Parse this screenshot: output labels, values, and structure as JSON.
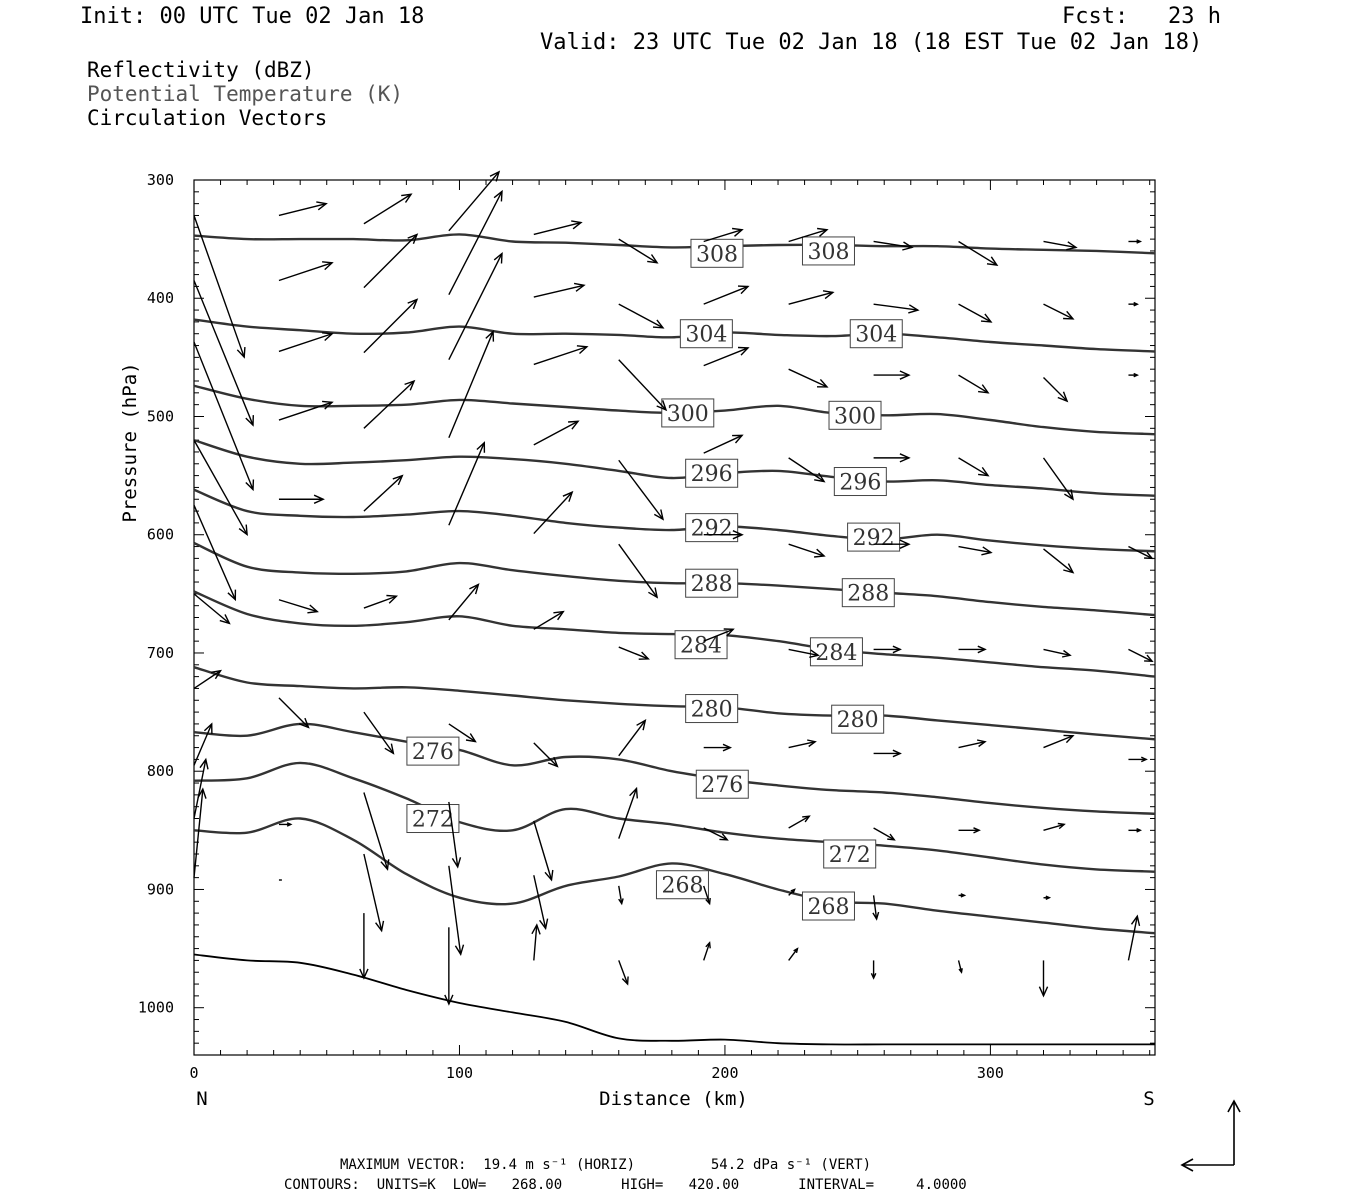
{
  "header": {
    "init": "Init: 00 UTC Tue 02 Jan 18",
    "fcst": "Fcst:   23 h",
    "valid": "Valid: 23 UTC Tue 02 Jan 18 (18 EST Tue 02 Jan 18)"
  },
  "fields": {
    "reflectivity": "Reflectivity (dBZ)",
    "theta": "Potential Temperature (K)",
    "vectors": "Circulation Vectors"
  },
  "footer": {
    "max_vector": "MAXIMUM VECTOR:  19.4 m s⁻¹ (HORIZ)         54.2 dPa s⁻¹ (VERT)",
    "contours": "CONTOURS:  UNITS=K  LOW=   268.00       HIGH=   420.00       INTERVAL=     4.0000"
  },
  "chart_data": {
    "type": "line",
    "xlabel": "Distance (km)",
    "ylabel": "Pressure (hPa)",
    "xlim": [
      0,
      362
    ],
    "ylim": [
      300,
      1040
    ],
    "y_inverted": true,
    "x_ticks": [
      "0",
      "100",
      "200",
      "300"
    ],
    "y_ticks": [
      "300",
      "400",
      "500",
      "600",
      "700",
      "800",
      "900",
      "1000"
    ],
    "left_end_label": "N",
    "right_end_label": "S",
    "contour_x": [
      0,
      20,
      40,
      60,
      80,
      100,
      120,
      140,
      160,
      180,
      200,
      220,
      240,
      260,
      280,
      300,
      320,
      340,
      362
    ],
    "series": [
      {
        "name": "308",
        "values": [
          347,
          350,
          350,
          350,
          351,
          346,
          352,
          353,
          355,
          357,
          356,
          355,
          355,
          356,
          356,
          358,
          359,
          360,
          362
        ]
      },
      {
        "name": "304",
        "values": [
          418,
          424,
          427,
          430,
          429,
          424,
          430,
          430,
          431,
          433,
          429,
          431,
          432,
          430,
          433,
          437,
          440,
          443,
          445
        ]
      },
      {
        "name": "300",
        "values": [
          474,
          485,
          491,
          491,
          490,
          486,
          489,
          492,
          495,
          497,
          495,
          491,
          497,
          499,
          498,
          503,
          509,
          513,
          515
        ]
      },
      {
        "name": "296",
        "values": [
          520,
          534,
          540,
          539,
          537,
          534,
          536,
          540,
          546,
          552,
          548,
          546,
          551,
          555,
          554,
          558,
          561,
          565,
          567
        ]
      },
      {
        "name": "292",
        "values": [
          562,
          580,
          584,
          585,
          583,
          580,
          584,
          590,
          594,
          596,
          593,
          596,
          601,
          604,
          600,
          605,
          609,
          612,
          614
        ]
      },
      {
        "name": "288",
        "values": [
          607,
          627,
          632,
          633,
          631,
          624,
          630,
          635,
          639,
          641,
          641,
          643,
          646,
          649,
          652,
          657,
          661,
          664,
          668
        ]
      },
      {
        "name": "284",
        "values": [
          648,
          667,
          675,
          677,
          674,
          669,
          677,
          680,
          683,
          684,
          685,
          690,
          697,
          701,
          704,
          708,
          712,
          715,
          720
        ]
      },
      {
        "name": "280",
        "values": [
          712,
          725,
          728,
          730,
          729,
          732,
          736,
          740,
          743,
          745,
          746,
          751,
          753,
          753,
          757,
          761,
          765,
          769,
          773
        ]
      },
      {
        "name": "276",
        "values": [
          767,
          770,
          760,
          767,
          775,
          782,
          795,
          788,
          790,
          800,
          807,
          812,
          816,
          818,
          822,
          827,
          831,
          834,
          836
        ]
      },
      {
        "name": "272",
        "values": [
          808,
          806,
          793,
          806,
          823,
          843,
          850,
          832,
          840,
          845,
          852,
          857,
          860,
          863,
          867,
          873,
          879,
          883,
          885
        ]
      },
      {
        "name": "268",
        "values": [
          850,
          852,
          840,
          858,
          887,
          907,
          912,
          897,
          889,
          878,
          887,
          900,
          910,
          912,
          918,
          923,
          928,
          933,
          937
        ]
      },
      {
        "name": "",
        "values": [
          955,
          960,
          962,
          972,
          985,
          996,
          1004,
          1012,
          1026,
          1028,
          1027,
          1030,
          1031,
          1031,
          1031,
          1031,
          1031,
          1031,
          1031
        ]
      }
    ],
    "contour_labels": [
      {
        "text": "308",
        "x": 197,
        "y": 362
      },
      {
        "text": "308",
        "x": 239,
        "y": 360
      },
      {
        "text": "304",
        "x": 193,
        "y": 430
      },
      {
        "text": "304",
        "x": 257,
        "y": 430
      },
      {
        "text": "300",
        "x": 186,
        "y": 497
      },
      {
        "text": "300",
        "x": 249,
        "y": 499
      },
      {
        "text": "296",
        "x": 195,
        "y": 548
      },
      {
        "text": "296",
        "x": 251,
        "y": 555
      },
      {
        "text": "292",
        "x": 195,
        "y": 594
      },
      {
        "text": "292",
        "x": 256,
        "y": 602
      },
      {
        "text": "288",
        "x": 195,
        "y": 641
      },
      {
        "text": "288",
        "x": 254,
        "y": 649
      },
      {
        "text": "284",
        "x": 191,
        "y": 693
      },
      {
        "text": "284",
        "x": 242,
        "y": 699
      },
      {
        "text": "280",
        "x": 195,
        "y": 747
      },
      {
        "text": "280",
        "x": 250,
        "y": 756
      },
      {
        "text": "276",
        "x": 90,
        "y": 783
      },
      {
        "text": "276",
        "x": 199,
        "y": 811
      },
      {
        "text": "272",
        "x": 90,
        "y": 840
      },
      {
        "text": "272",
        "x": 247,
        "y": 870
      },
      {
        "text": "268",
        "x": 184,
        "y": 896
      },
      {
        "text": "268",
        "x": 239,
        "y": 914
      }
    ],
    "vectors": [
      {
        "x": 0,
        "y": 330,
        "u": 17,
        "v": 48
      },
      {
        "x": 32,
        "y": 330,
        "u": 16,
        "v": -4
      },
      {
        "x": 64,
        "y": 337,
        "u": 16,
        "v": -10
      },
      {
        "x": 96,
        "y": 343,
        "u": 17,
        "v": -20
      },
      {
        "x": 128,
        "y": 346,
        "u": 16,
        "v": -4
      },
      {
        "x": 160,
        "y": 350,
        "u": 13,
        "v": 8
      },
      {
        "x": 192,
        "y": 352,
        "u": 13,
        "v": -4
      },
      {
        "x": 224,
        "y": 352,
        "u": 13,
        "v": -4
      },
      {
        "x": 256,
        "y": 352,
        "u": 13,
        "v": 2
      },
      {
        "x": 288,
        "y": 352,
        "u": 13,
        "v": 8
      },
      {
        "x": 320,
        "y": 352,
        "u": 11,
        "v": 2
      },
      {
        "x": 352,
        "y": 352,
        "u": 4,
        "v": 0
      },
      {
        "x": 0,
        "y": 385,
        "u": 20,
        "v": 49
      },
      {
        "x": 32,
        "y": 385,
        "u": 18,
        "v": -6
      },
      {
        "x": 64,
        "y": 391,
        "u": 18,
        "v": -18
      },
      {
        "x": 96,
        "y": 397,
        "u": 18,
        "v": -35
      },
      {
        "x": 128,
        "y": 399,
        "u": 17,
        "v": -4
      },
      {
        "x": 160,
        "y": 405,
        "u": 15,
        "v": 8
      },
      {
        "x": 192,
        "y": 405,
        "u": 15,
        "v": -6
      },
      {
        "x": 224,
        "y": 405,
        "u": 15,
        "v": -4
      },
      {
        "x": 256,
        "y": 405,
        "u": 15,
        "v": 2
      },
      {
        "x": 288,
        "y": 405,
        "u": 11,
        "v": 6
      },
      {
        "x": 320,
        "y": 405,
        "u": 10,
        "v": 5
      },
      {
        "x": 352,
        "y": 405,
        "u": 3,
        "v": 0
      },
      {
        "x": 0,
        "y": 437,
        "u": 20,
        "v": 50
      },
      {
        "x": 32,
        "y": 445,
        "u": 18,
        "v": -6
      },
      {
        "x": 64,
        "y": 446,
        "u": 18,
        "v": -18
      },
      {
        "x": 96,
        "y": 452,
        "u": 18,
        "v": -36
      },
      {
        "x": 128,
        "y": 456,
        "u": 18,
        "v": -6
      },
      {
        "x": 160,
        "y": 452,
        "u": 16,
        "v": 17
      },
      {
        "x": 192,
        "y": 457,
        "u": 15,
        "v": -6
      },
      {
        "x": 224,
        "y": 460,
        "u": 13,
        "v": 6
      },
      {
        "x": 256,
        "y": 465,
        "u": 12,
        "v": 0
      },
      {
        "x": 288,
        "y": 465,
        "u": 10,
        "v": 6
      },
      {
        "x": 320,
        "y": 467,
        "u": 8,
        "v": 8
      },
      {
        "x": 352,
        "y": 465,
        "u": 3,
        "v": 0
      },
      {
        "x": 0,
        "y": 520,
        "u": 18,
        "v": 32
      },
      {
        "x": 32,
        "y": 503,
        "u": 18,
        "v": -6
      },
      {
        "x": 64,
        "y": 510,
        "u": 17,
        "v": -16
      },
      {
        "x": 96,
        "y": 518,
        "u": 15,
        "v": -36
      },
      {
        "x": 128,
        "y": 524,
        "u": 15,
        "v": -8
      },
      {
        "x": 160,
        "y": 537,
        "u": 15,
        "v": 20
      },
      {
        "x": 192,
        "y": 531,
        "u": 13,
        "v": -6
      },
      {
        "x": 224,
        "y": 535,
        "u": 12,
        "v": 8
      },
      {
        "x": 256,
        "y": 535,
        "u": 12,
        "v": 0
      },
      {
        "x": 288,
        "y": 535,
        "u": 10,
        "v": 6
      },
      {
        "x": 320,
        "y": 535,
        "u": 10,
        "v": 14
      },
      {
        "x": 0,
        "y": 575,
        "u": 14,
        "v": 32
      },
      {
        "x": 32,
        "y": 570,
        "u": 15,
        "v": 0
      },
      {
        "x": 64,
        "y": 580,
        "u": 13,
        "v": -12
      },
      {
        "x": 96,
        "y": 592,
        "u": 12,
        "v": -28
      },
      {
        "x": 128,
        "y": 599,
        "u": 13,
        "v": -14
      },
      {
        "x": 160,
        "y": 608,
        "u": 13,
        "v": 18
      },
      {
        "x": 192,
        "y": 600,
        "u": 13,
        "v": 0
      },
      {
        "x": 224,
        "y": 608,
        "u": 12,
        "v": 4
      },
      {
        "x": 256,
        "y": 608,
        "u": 12,
        "v": 0
      },
      {
        "x": 288,
        "y": 610,
        "u": 11,
        "v": 2
      },
      {
        "x": 320,
        "y": 612,
        "u": 10,
        "v": 8
      },
      {
        "x": 352,
        "y": 610,
        "u": 8,
        "v": 4
      },
      {
        "x": 0,
        "y": 650,
        "u": 12,
        "v": 10
      },
      {
        "x": 32,
        "y": 655,
        "u": 13,
        "v": 4
      },
      {
        "x": 64,
        "y": 662,
        "u": 11,
        "v": -4
      },
      {
        "x": 96,
        "y": 672,
        "u": 10,
        "v": -12
      },
      {
        "x": 128,
        "y": 680,
        "u": 10,
        "v": -6
      },
      {
        "x": 160,
        "y": 695,
        "u": 10,
        "v": 4
      },
      {
        "x": 192,
        "y": 690,
        "u": 10,
        "v": -4
      },
      {
        "x": 224,
        "y": 697,
        "u": 10,
        "v": 2
      },
      {
        "x": 256,
        "y": 697,
        "u": 9,
        "v": 0
      },
      {
        "x": 288,
        "y": 697,
        "u": 9,
        "v": 0
      },
      {
        "x": 320,
        "y": 697,
        "u": 9,
        "v": 2
      },
      {
        "x": 352,
        "y": 697,
        "u": 8,
        "v": 4
      },
      {
        "x": 0,
        "y": 730,
        "u": 9,
        "v": -6
      },
      {
        "x": 32,
        "y": 738,
        "u": 10,
        "v": 10
      },
      {
        "x": 64,
        "y": 750,
        "u": 10,
        "v": 14
      },
      {
        "x": 96,
        "y": 760,
        "u": 9,
        "v": 6
      },
      {
        "x": 128,
        "y": 776,
        "u": 8,
        "v": 8
      },
      {
        "x": 160,
        "y": 787,
        "u": 9,
        "v": -12
      },
      {
        "x": 192,
        "y": 780,
        "u": 9,
        "v": 0
      },
      {
        "x": 224,
        "y": 780,
        "u": 9,
        "v": -2
      },
      {
        "x": 256,
        "y": 785,
        "u": 9,
        "v": 0
      },
      {
        "x": 288,
        "y": 780,
        "u": 9,
        "v": -2
      },
      {
        "x": 320,
        "y": 780,
        "u": 10,
        "v": -4
      },
      {
        "x": 352,
        "y": 790,
        "u": 6,
        "v": 0
      },
      {
        "x": 0,
        "y": 795,
        "u": 6,
        "v": -14
      },
      {
        "x": 0,
        "y": 840,
        "u": 4,
        "v": -20
      },
      {
        "x": 32,
        "y": 845,
        "u": 4,
        "v": 0
      },
      {
        "x": 64,
        "y": 818,
        "u": 8,
        "v": 26
      },
      {
        "x": 96,
        "y": 826,
        "u": 3,
        "v": 22
      },
      {
        "x": 128,
        "y": 842,
        "u": 6,
        "v": 20
      },
      {
        "x": 160,
        "y": 857,
        "u": 6,
        "v": -17
      },
      {
        "x": 192,
        "y": 848,
        "u": 8,
        "v": 4
      },
      {
        "x": 224,
        "y": 848,
        "u": 7,
        "v": -4
      },
      {
        "x": 256,
        "y": 848,
        "u": 7,
        "v": 4
      },
      {
        "x": 288,
        "y": 850,
        "u": 7,
        "v": 0
      },
      {
        "x": 320,
        "y": 850,
        "u": 7,
        "v": -2
      },
      {
        "x": 352,
        "y": 850,
        "u": 4,
        "v": 0
      },
      {
        "x": 0,
        "y": 890,
        "u": 3,
        "v": -30
      },
      {
        "x": 32,
        "y": 892,
        "u": 1,
        "v": 0
      },
      {
        "x": 64,
        "y": 870,
        "u": 6,
        "v": 26
      },
      {
        "x": 96,
        "y": 880,
        "u": 4,
        "v": 30
      },
      {
        "x": 128,
        "y": 888,
        "u": 4,
        "v": 18
      },
      {
        "x": 160,
        "y": 897,
        "u": 1,
        "v": 6
      },
      {
        "x": 192,
        "y": 897,
        "u": 2,
        "v": 6
      },
      {
        "x": 224,
        "y": 905,
        "u": 2,
        "v": -2
      },
      {
        "x": 256,
        "y": 905,
        "u": 1,
        "v": 8
      },
      {
        "x": 288,
        "y": 905,
        "u": 2,
        "v": 0
      },
      {
        "x": 320,
        "y": 907,
        "u": 2,
        "v": 0
      },
      {
        "x": 64,
        "y": 920,
        "u": 0,
        "v": 22
      },
      {
        "x": 96,
        "y": 932,
        "u": 0,
        "v": 26
      },
      {
        "x": 128,
        "y": 960,
        "u": 1,
        "v": -12
      },
      {
        "x": 160,
        "y": 960,
        "u": 3,
        "v": 8
      },
      {
        "x": 192,
        "y": 960,
        "u": 2,
        "v": -6
      },
      {
        "x": 224,
        "y": 960,
        "u": 3,
        "v": -4
      },
      {
        "x": 256,
        "y": 960,
        "u": 0,
        "v": 6
      },
      {
        "x": 288,
        "y": 960,
        "u": 1,
        "v": 4
      },
      {
        "x": 320,
        "y": 960,
        "u": 0,
        "v": 12
      },
      {
        "x": 352,
        "y": 960,
        "u": 3,
        "v": -15
      }
    ]
  }
}
